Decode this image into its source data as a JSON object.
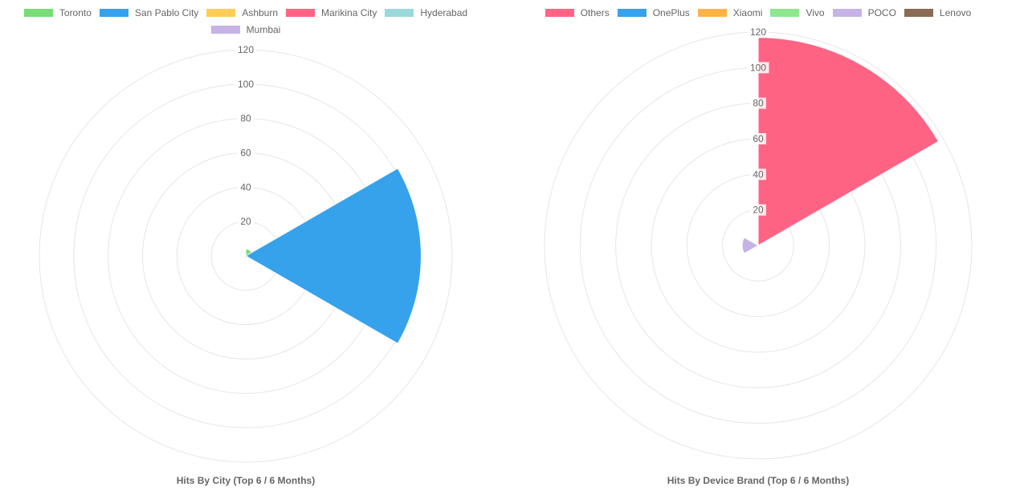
{
  "chart_data": [
    {
      "type": "polarArea",
      "title": "Hits By City (Top 6 / 6 Months)",
      "categories": [
        "Toronto",
        "San Pablo City",
        "Ashburn",
        "Marikina City",
        "Hyderabad",
        "Mumbai"
      ],
      "values": [
        4,
        102,
        1,
        1,
        0,
        0
      ],
      "colors": [
        "#77dd77",
        "#36a2eb",
        "#ffcd56",
        "#ff6384",
        "#9ad9db",
        "#c5b3e6"
      ],
      "ticks": [
        20,
        40,
        60,
        80,
        100,
        120
      ],
      "rlim": [
        0,
        120
      ],
      "grid": true,
      "legend_position": "top"
    },
    {
      "type": "polarArea",
      "title": "Hits By Device Brand (Top 6 / 6 Months)",
      "categories": [
        "Others",
        "OnePlus",
        "Xiaomi",
        "Vivo",
        "POCO",
        "Lenovo"
      ],
      "values": [
        117,
        1,
        0,
        0,
        9,
        0
      ],
      "colors": [
        "#ff6384",
        "#36a2eb",
        "#ffb347",
        "#8ee68e",
        "#c5b3e6",
        "#8b6b55"
      ],
      "ticks": [
        20,
        40,
        60,
        80,
        100,
        120
      ],
      "rlim": [
        0,
        120
      ],
      "grid": true,
      "legend_position": "top"
    }
  ]
}
